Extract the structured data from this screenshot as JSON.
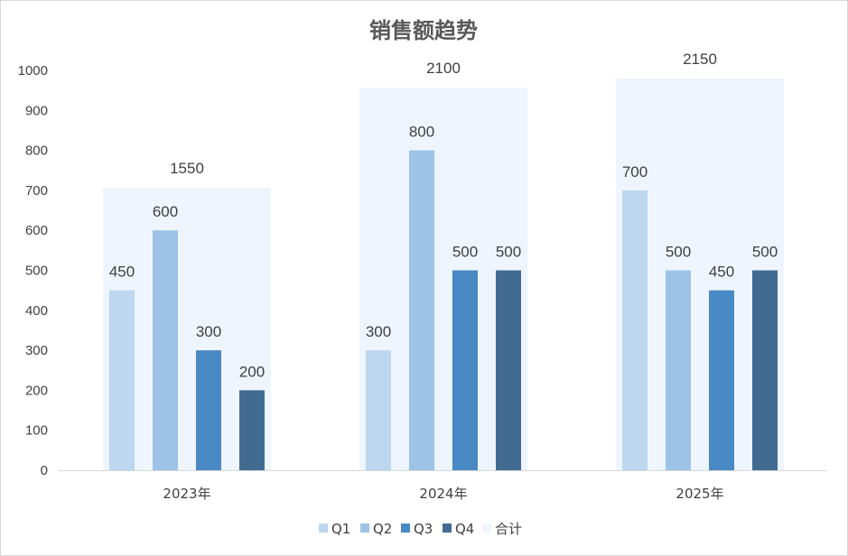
{
  "chart_data": {
    "type": "bar",
    "title": "销售额趋势",
    "xlabel": "",
    "ylabel": "",
    "ylim": [
      0,
      1000
    ],
    "yticks": [
      0,
      100,
      200,
      300,
      400,
      500,
      600,
      700,
      800,
      900,
      1000
    ],
    "categories": [
      "2023年",
      "2024年",
      "2025年"
    ],
    "series": [
      {
        "name": "Q1",
        "values": [
          450,
          300,
          700
        ],
        "color": "#bdd7ee"
      },
      {
        "name": "Q2",
        "values": [
          600,
          800,
          500
        ],
        "color": "#9dc3e6"
      },
      {
        "name": "Q3",
        "values": [
          300,
          500,
          450
        ],
        "color": "#4a8ac4"
      },
      {
        "name": "Q4",
        "values": [
          200,
          500,
          500
        ],
        "color": "#426b92"
      }
    ],
    "total": {
      "name": "合计",
      "values": [
        1550,
        2100,
        2150
      ],
      "color": "#eef5fc"
    },
    "grid": false,
    "legend_position": "bottom"
  }
}
